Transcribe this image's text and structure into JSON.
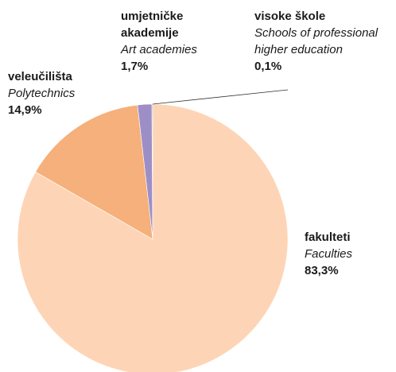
{
  "chart_data": {
    "type": "pie",
    "categories": [
      "fakulteti",
      "veleučilišta",
      "umjetničke akademije",
      "visoke škole"
    ],
    "categories_en": [
      "Faculties",
      "Polytechnics",
      "Art academies",
      "Schools of professional higher education"
    ],
    "values": [
      83.3,
      14.9,
      1.7,
      0.1
    ],
    "value_labels": [
      "83,3%",
      "14,9%",
      "1,7%",
      "0,1%"
    ],
    "colors": [
      "#fdd5b6",
      "#f5b07b",
      "#9d8fc6",
      "#3b3b5c"
    ]
  }
}
